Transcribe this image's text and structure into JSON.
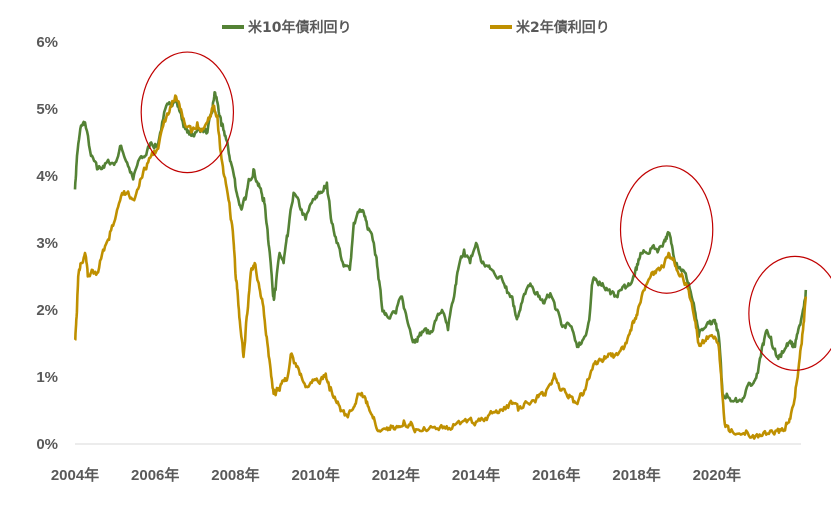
{
  "colors": {
    "us10y": "#548235",
    "us2y": "#BF9000",
    "highlight": "#C00000",
    "axis": "#D9D9D9",
    "text": "#595959"
  },
  "chart_data": {
    "type": "line",
    "title": "",
    "xlabel": "",
    "ylabel": "",
    "xlim": [
      2004.0,
      2022.0
    ],
    "ylim": [
      0,
      6
    ],
    "grid": false,
    "legend": "top",
    "y_tick_labels": [
      "0%",
      "1%",
      "2%",
      "3%",
      "4%",
      "5%",
      "6%"
    ],
    "x_tick_labels": [
      "2004年",
      "2006年",
      "2008年",
      "2010年",
      "2012年",
      "2014年",
      "2016年",
      "2018年",
      "2020年"
    ],
    "x_tick_values": [
      2004,
      2006,
      2008,
      2010,
      2012,
      2014,
      2016,
      2018,
      2020
    ],
    "series": [
      {
        "name": "米10年債利回り",
        "color": "#548235",
        "points": [
          [
            2004.0,
            3.8
          ],
          [
            2004.05,
            4.3
          ],
          [
            2004.15,
            4.75
          ],
          [
            2004.25,
            4.8
          ],
          [
            2004.4,
            4.3
          ],
          [
            2004.55,
            4.1
          ],
          [
            2004.7,
            4.15
          ],
          [
            2004.85,
            4.2
          ],
          [
            2005.0,
            4.2
          ],
          [
            2005.15,
            4.45
          ],
          [
            2005.3,
            4.2
          ],
          [
            2005.45,
            3.95
          ],
          [
            2005.6,
            4.25
          ],
          [
            2005.75,
            4.3
          ],
          [
            2005.9,
            4.5
          ],
          [
            2006.05,
            4.45
          ],
          [
            2006.2,
            4.85
          ],
          [
            2006.35,
            5.1
          ],
          [
            2006.5,
            5.15
          ],
          [
            2006.62,
            4.95
          ],
          [
            2006.75,
            4.7
          ],
          [
            2006.9,
            4.6
          ],
          [
            2007.0,
            4.65
          ],
          [
            2007.15,
            4.7
          ],
          [
            2007.3,
            4.65
          ],
          [
            2007.42,
            4.95
          ],
          [
            2007.48,
            5.25
          ],
          [
            2007.55,
            5.1
          ],
          [
            2007.65,
            4.75
          ],
          [
            2007.75,
            4.6
          ],
          [
            2007.85,
            4.3
          ],
          [
            2007.95,
            4.05
          ],
          [
            2008.05,
            3.7
          ],
          [
            2008.15,
            3.5
          ],
          [
            2008.25,
            3.65
          ],
          [
            2008.35,
            3.95
          ],
          [
            2008.45,
            4.1
          ],
          [
            2008.55,
            3.9
          ],
          [
            2008.65,
            3.75
          ],
          [
            2008.72,
            3.6
          ],
          [
            2008.8,
            3.2
          ],
          [
            2008.88,
            2.7
          ],
          [
            2008.95,
            2.2
          ],
          [
            2009.0,
            2.3
          ],
          [
            2009.1,
            2.85
          ],
          [
            2009.2,
            2.7
          ],
          [
            2009.3,
            3.1
          ],
          [
            2009.45,
            3.75
          ],
          [
            2009.6,
            3.55
          ],
          [
            2009.75,
            3.35
          ],
          [
            2009.9,
            3.6
          ],
          [
            2010.0,
            3.7
          ],
          [
            2010.15,
            3.75
          ],
          [
            2010.28,
            3.9
          ],
          [
            2010.4,
            3.3
          ],
          [
            2010.55,
            3.0
          ],
          [
            2010.7,
            2.65
          ],
          [
            2010.85,
            2.6
          ],
          [
            2010.95,
            3.3
          ],
          [
            2011.1,
            3.5
          ],
          [
            2011.2,
            3.45
          ],
          [
            2011.3,
            3.2
          ],
          [
            2011.45,
            3.0
          ],
          [
            2011.55,
            2.6
          ],
          [
            2011.65,
            2.05
          ],
          [
            2011.75,
            1.95
          ],
          [
            2011.9,
            1.95
          ],
          [
            2012.0,
            1.95
          ],
          [
            2012.15,
            2.2
          ],
          [
            2012.3,
            1.8
          ],
          [
            2012.45,
            1.55
          ],
          [
            2012.55,
            1.6
          ],
          [
            2012.7,
            1.7
          ],
          [
            2012.85,
            1.65
          ],
          [
            2013.0,
            1.85
          ],
          [
            2013.15,
            2.0
          ],
          [
            2013.3,
            1.7
          ],
          [
            2013.45,
            2.2
          ],
          [
            2013.55,
            2.6
          ],
          [
            2013.7,
            2.9
          ],
          [
            2013.85,
            2.7
          ],
          [
            2014.0,
            3.0
          ],
          [
            2014.15,
            2.7
          ],
          [
            2014.3,
            2.65
          ],
          [
            2014.45,
            2.55
          ],
          [
            2014.6,
            2.5
          ],
          [
            2014.75,
            2.35
          ],
          [
            2014.9,
            2.2
          ],
          [
            2015.0,
            1.9
          ],
          [
            2015.1,
            2.0
          ],
          [
            2015.25,
            2.3
          ],
          [
            2015.4,
            2.35
          ],
          [
            2015.55,
            2.2
          ],
          [
            2015.7,
            2.1
          ],
          [
            2015.85,
            2.25
          ],
          [
            2016.0,
            2.0
          ],
          [
            2016.15,
            1.75
          ],
          [
            2016.3,
            1.8
          ],
          [
            2016.45,
            1.6
          ],
          [
            2016.55,
            1.45
          ],
          [
            2016.7,
            1.6
          ],
          [
            2016.82,
            1.85
          ],
          [
            2016.9,
            2.4
          ],
          [
            2017.0,
            2.45
          ],
          [
            2017.15,
            2.4
          ],
          [
            2017.3,
            2.3
          ],
          [
            2017.45,
            2.2
          ],
          [
            2017.6,
            2.3
          ],
          [
            2017.75,
            2.35
          ],
          [
            2017.9,
            2.45
          ],
          [
            2018.0,
            2.6
          ],
          [
            2018.1,
            2.85
          ],
          [
            2018.25,
            2.85
          ],
          [
            2018.4,
            2.95
          ],
          [
            2018.55,
            2.9
          ],
          [
            2018.7,
            3.05
          ],
          [
            2018.8,
            3.15
          ],
          [
            2018.9,
            2.9
          ],
          [
            2019.0,
            2.7
          ],
          [
            2019.15,
            2.6
          ],
          [
            2019.3,
            2.4
          ],
          [
            2019.45,
            2.0
          ],
          [
            2019.55,
            1.6
          ],
          [
            2019.65,
            1.7
          ],
          [
            2019.8,
            1.8
          ],
          [
            2019.95,
            1.85
          ],
          [
            2020.05,
            1.6
          ],
          [
            2020.15,
            0.7
          ],
          [
            2020.25,
            0.75
          ],
          [
            2020.45,
            0.65
          ],
          [
            2020.6,
            0.65
          ],
          [
            2020.75,
            0.85
          ],
          [
            2020.9,
            0.9
          ],
          [
            2021.0,
            1.05
          ],
          [
            2021.15,
            1.5
          ],
          [
            2021.25,
            1.7
          ],
          [
            2021.35,
            1.6
          ],
          [
            2021.5,
            1.3
          ],
          [
            2021.6,
            1.3
          ],
          [
            2021.75,
            1.5
          ],
          [
            2021.85,
            1.5
          ],
          [
            2021.95,
            1.45
          ],
          [
            2022.05,
            1.75
          ],
          [
            2022.15,
            2.0
          ],
          [
            2022.22,
            2.3
          ]
        ]
      },
      {
        "name": "米2年債利回り",
        "color": "#BF9000",
        "points": [
          [
            2004.0,
            1.55
          ],
          [
            2004.04,
            1.9
          ],
          [
            2004.08,
            2.5
          ],
          [
            2004.15,
            2.7
          ],
          [
            2004.25,
            2.85
          ],
          [
            2004.32,
            2.5
          ],
          [
            2004.42,
            2.6
          ],
          [
            2004.55,
            2.55
          ],
          [
            2004.7,
            2.9
          ],
          [
            2004.85,
            3.05
          ],
          [
            2005.0,
            3.35
          ],
          [
            2005.15,
            3.7
          ],
          [
            2005.3,
            3.75
          ],
          [
            2005.45,
            3.65
          ],
          [
            2005.6,
            3.85
          ],
          [
            2005.75,
            4.1
          ],
          [
            2005.9,
            4.3
          ],
          [
            2006.05,
            4.4
          ],
          [
            2006.2,
            4.75
          ],
          [
            2006.35,
            4.95
          ],
          [
            2006.5,
            5.2
          ],
          [
            2006.62,
            5.0
          ],
          [
            2006.75,
            4.75
          ],
          [
            2006.9,
            4.65
          ],
          [
            2007.05,
            4.8
          ],
          [
            2007.2,
            4.7
          ],
          [
            2007.35,
            4.85
          ],
          [
            2007.45,
            5.05
          ],
          [
            2007.55,
            4.9
          ],
          [
            2007.62,
            4.4
          ],
          [
            2007.72,
            4.0
          ],
          [
            2007.85,
            3.6
          ],
          [
            2007.95,
            3.05
          ],
          [
            2008.0,
            2.55
          ],
          [
            2008.05,
            2.3
          ],
          [
            2008.12,
            1.75
          ],
          [
            2008.2,
            1.3
          ],
          [
            2008.28,
            1.9
          ],
          [
            2008.38,
            2.55
          ],
          [
            2008.48,
            2.7
          ],
          [
            2008.58,
            2.4
          ],
          [
            2008.68,
            2.1
          ],
          [
            2008.78,
            1.6
          ],
          [
            2008.88,
            1.1
          ],
          [
            2008.95,
            0.75
          ],
          [
            2009.05,
            0.8
          ],
          [
            2009.15,
            0.9
          ],
          [
            2009.28,
            0.95
          ],
          [
            2009.4,
            1.35
          ],
          [
            2009.52,
            1.15
          ],
          [
            2009.65,
            1.0
          ],
          [
            2009.8,
            0.85
          ],
          [
            2009.95,
            0.95
          ],
          [
            2010.1,
            0.9
          ],
          [
            2010.25,
            1.05
          ],
          [
            2010.35,
            0.8
          ],
          [
            2010.5,
            0.65
          ],
          [
            2010.65,
            0.5
          ],
          [
            2010.8,
            0.4
          ],
          [
            2010.95,
            0.55
          ],
          [
            2011.05,
            0.75
          ],
          [
            2011.2,
            0.7
          ],
          [
            2011.32,
            0.55
          ],
          [
            2011.45,
            0.4
          ],
          [
            2011.58,
            0.2
          ],
          [
            2011.75,
            0.22
          ],
          [
            2011.9,
            0.25
          ],
          [
            2012.05,
            0.25
          ],
          [
            2012.2,
            0.35
          ],
          [
            2012.35,
            0.28
          ],
          [
            2012.5,
            0.22
          ],
          [
            2012.7,
            0.25
          ],
          [
            2012.9,
            0.25
          ],
          [
            2013.1,
            0.25
          ],
          [
            2013.3,
            0.22
          ],
          [
            2013.5,
            0.3
          ],
          [
            2013.7,
            0.35
          ],
          [
            2013.9,
            0.32
          ],
          [
            2014.1,
            0.35
          ],
          [
            2014.3,
            0.42
          ],
          [
            2014.5,
            0.5
          ],
          [
            2014.7,
            0.55
          ],
          [
            2014.9,
            0.6
          ],
          [
            2015.05,
            0.5
          ],
          [
            2015.2,
            0.6
          ],
          [
            2015.4,
            0.65
          ],
          [
            2015.55,
            0.7
          ],
          [
            2015.7,
            0.75
          ],
          [
            2015.85,
            0.9
          ],
          [
            2015.95,
            1.05
          ],
          [
            2016.1,
            0.8
          ],
          [
            2016.25,
            0.75
          ],
          [
            2016.4,
            0.7
          ],
          [
            2016.55,
            0.65
          ],
          [
            2016.7,
            0.8
          ],
          [
            2016.85,
            1.05
          ],
          [
            2016.95,
            1.2
          ],
          [
            2017.1,
            1.25
          ],
          [
            2017.25,
            1.3
          ],
          [
            2017.4,
            1.35
          ],
          [
            2017.55,
            1.35
          ],
          [
            2017.7,
            1.45
          ],
          [
            2017.85,
            1.7
          ],
          [
            2017.95,
            1.85
          ],
          [
            2018.05,
            2.05
          ],
          [
            2018.2,
            2.3
          ],
          [
            2018.35,
            2.5
          ],
          [
            2018.5,
            2.6
          ],
          [
            2018.65,
            2.65
          ],
          [
            2018.8,
            2.85
          ],
          [
            2018.9,
            2.75
          ],
          [
            2019.0,
            2.6
          ],
          [
            2019.15,
            2.5
          ],
          [
            2019.3,
            2.3
          ],
          [
            2019.45,
            1.85
          ],
          [
            2019.55,
            1.5
          ],
          [
            2019.65,
            1.55
          ],
          [
            2019.8,
            1.6
          ],
          [
            2019.95,
            1.6
          ],
          [
            2020.05,
            1.45
          ],
          [
            2020.12,
            0.9
          ],
          [
            2020.2,
            0.3
          ],
          [
            2020.3,
            0.2
          ],
          [
            2020.5,
            0.15
          ],
          [
            2020.7,
            0.14
          ],
          [
            2020.9,
            0.13
          ],
          [
            2021.1,
            0.12
          ],
          [
            2021.3,
            0.15
          ],
          [
            2021.5,
            0.2
          ],
          [
            2021.65,
            0.2
          ],
          [
            2021.75,
            0.3
          ],
          [
            2021.85,
            0.45
          ],
          [
            2021.95,
            0.7
          ],
          [
            2022.05,
            1.2
          ],
          [
            2022.15,
            1.7
          ],
          [
            2022.22,
            2.2
          ]
        ]
      }
    ],
    "annotations": [
      {
        "shape": "ellipse",
        "cx": 2006.8,
        "cy": 4.95,
        "rx": 1.15,
        "ry": 0.9
      },
      {
        "shape": "ellipse",
        "cx": 2018.75,
        "cy": 3.2,
        "rx": 1.15,
        "ry": 0.95
      },
      {
        "shape": "ellipse",
        "cx": 2021.95,
        "cy": 1.95,
        "rx": 1.15,
        "ry": 0.85
      }
    ]
  }
}
